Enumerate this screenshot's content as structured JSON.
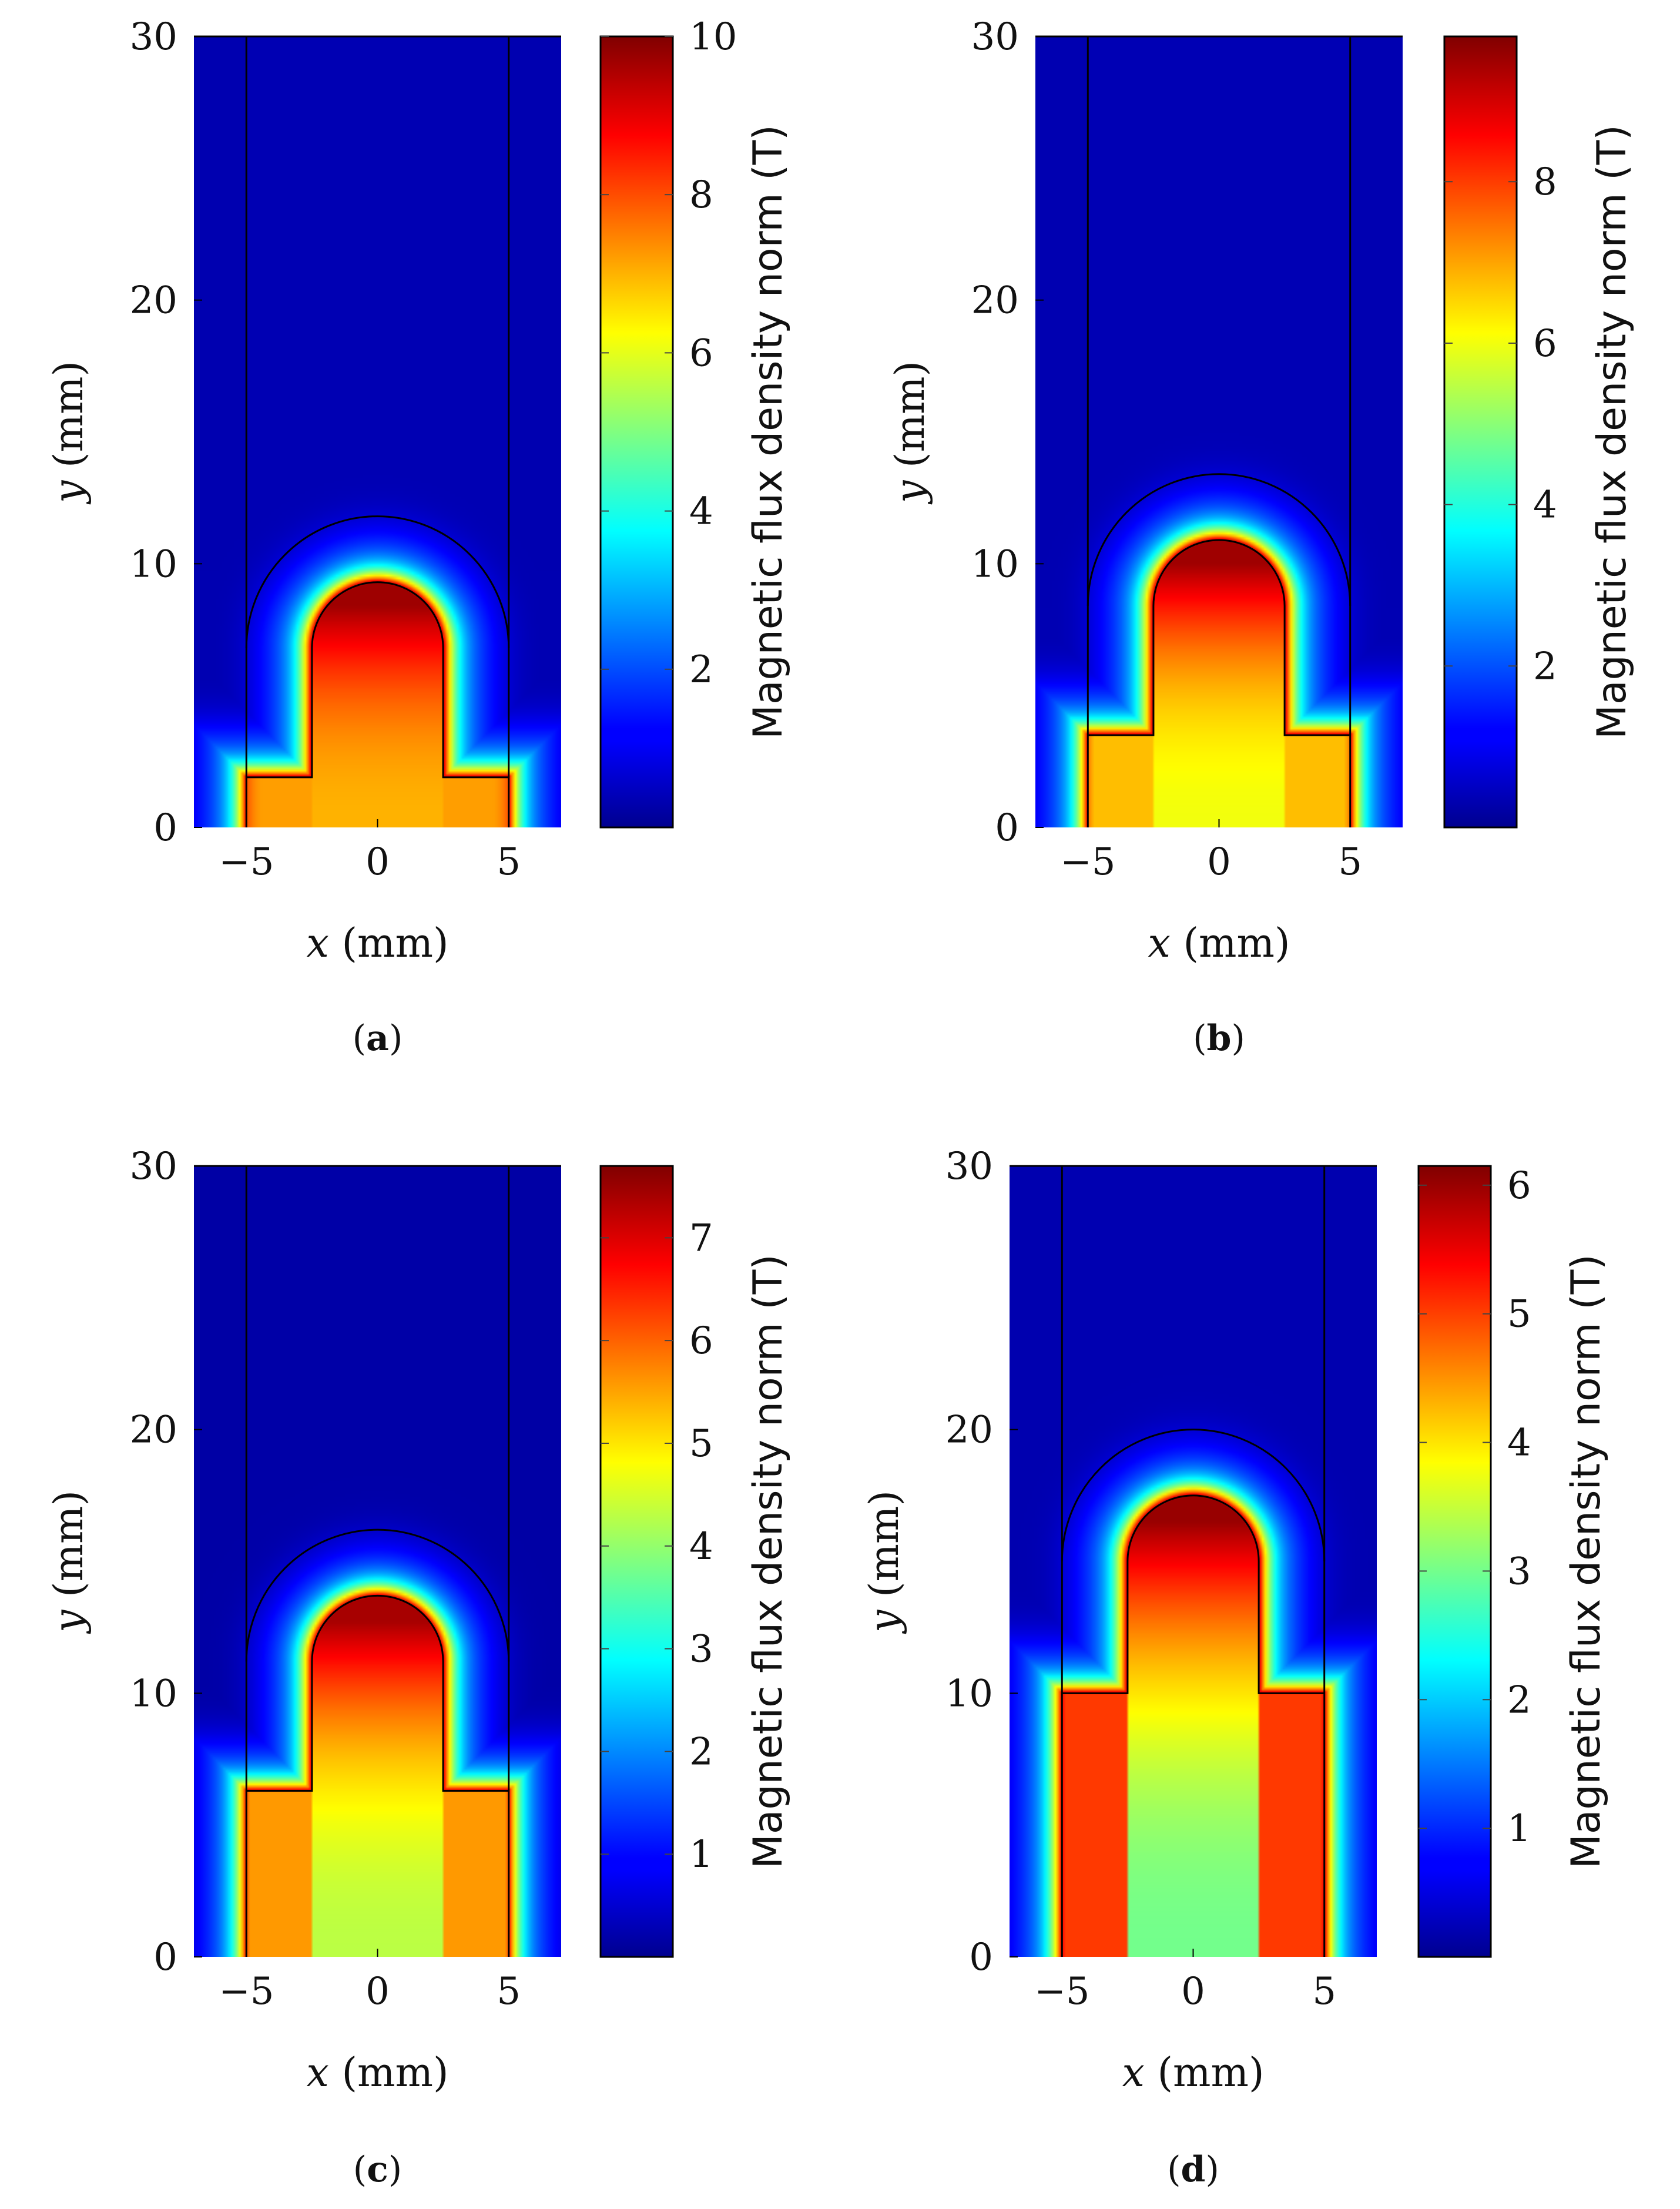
{
  "figure": {
    "captions": [
      "(a)",
      "(b)",
      "(c)",
      "(d)"
    ],
    "caption_letters": [
      "a",
      "b",
      "c",
      "d"
    ]
  },
  "chart_data": [
    {
      "type": "heatmap",
      "panel": "(a)",
      "xlabel_var": "x",
      "xlabel_unit": " (mm)",
      "ylabel_var": "y",
      "ylabel_unit": " (mm)",
      "xlim": [
        -7,
        7
      ],
      "ylim": [
        0,
        30
      ],
      "xticks": [
        -5,
        0,
        5
      ],
      "xtick_labels": [
        "−5",
        "0",
        "5"
      ],
      "yticks": [
        0,
        10,
        20,
        30
      ],
      "ytick_labels": [
        "0",
        "10",
        "20",
        "30"
      ],
      "colorbar": {
        "label": "Magnetic flux density norm (T)",
        "min": 0,
        "max": 10,
        "ticks": [
          2,
          4,
          6,
          8,
          10
        ],
        "tick_labels": [
          "2",
          "4",
          "6",
          "8",
          "10"
        ]
      },
      "geometry": {
        "channel_x": [
          -5,
          5
        ],
        "step_y": 1.9,
        "pole_x": [
          -2.5,
          2.5
        ],
        "pole_tip_y": 8.4,
        "arc_center_y": 6.8,
        "outer_arc_radius": 5,
        "outer_arc_top_y": 11.8
      },
      "field": {
        "pole_max_T": 9.7,
        "pole_base_T": 7.0,
        "side_T": 8.0,
        "far_T": 0.5
      }
    },
    {
      "type": "heatmap",
      "panel": "(b)",
      "xlabel_var": "x",
      "xlabel_unit": " (mm)",
      "ylabel_var": "y",
      "ylabel_unit": " (mm)",
      "xlim": [
        -7,
        7
      ],
      "ylim": [
        0,
        30
      ],
      "xticks": [
        -5,
        0,
        5
      ],
      "xtick_labels": [
        "−5",
        "0",
        "5"
      ],
      "yticks": [
        0,
        10,
        20,
        30
      ],
      "ytick_labels": [
        "0",
        "10",
        "20",
        "30"
      ],
      "colorbar": {
        "label": "Magnetic flux density norm (T)",
        "min": 0,
        "max": 9.8,
        "ticks": [
          2,
          4,
          6,
          8
        ],
        "tick_labels": [
          "2",
          "4",
          "6",
          "8"
        ]
      },
      "geometry": {
        "channel_x": [
          -5,
          5
        ],
        "step_y": 3.5,
        "pole_x": [
          -2.5,
          2.5
        ],
        "pole_tip_y": 10.0,
        "arc_center_y": 8.4,
        "outer_arc_radius": 5,
        "outer_arc_top_y": 13.4
      },
      "field": {
        "pole_max_T": 9.5,
        "pole_base_T": 6.0,
        "side_T": 7.5,
        "far_T": 0.5
      }
    },
    {
      "type": "heatmap",
      "panel": "(c)",
      "xlabel_var": "x",
      "xlabel_unit": " (mm)",
      "ylabel_var": "y",
      "ylabel_unit": " (mm)",
      "xlim": [
        -7,
        7
      ],
      "ylim": [
        0,
        30
      ],
      "xticks": [
        -5,
        0,
        5
      ],
      "xtick_labels": [
        "−5",
        "0",
        "5"
      ],
      "yticks": [
        0,
        10,
        20,
        30
      ],
      "ytick_labels": [
        "0",
        "10",
        "20",
        "30"
      ],
      "colorbar": {
        "label": "Magnetic flux density norm (T)",
        "min": 0,
        "max": 7.7,
        "ticks": [
          1,
          2,
          3,
          4,
          5,
          6,
          7
        ],
        "tick_labels": [
          "1",
          "2",
          "3",
          "4",
          "5",
          "6",
          "7"
        ]
      },
      "geometry": {
        "channel_x": [
          -5,
          5
        ],
        "step_y": 6.3,
        "pole_x": [
          -2.5,
          2.5
        ],
        "pole_tip_y": 12.7,
        "arc_center_y": 11.2,
        "outer_arc_radius": 5,
        "outer_arc_top_y": 16.2
      },
      "field": {
        "pole_max_T": 7.4,
        "pole_base_T": 4.3,
        "side_T": 6.2,
        "far_T": 0.3
      }
    },
    {
      "type": "heatmap",
      "panel": "(d)",
      "xlabel_var": "x",
      "xlabel_unit": " (mm)",
      "ylabel_var": "y",
      "ylabel_unit": " (mm)",
      "xlim": [
        -7,
        7
      ],
      "ylim": [
        0,
        30
      ],
      "xticks": [
        -5,
        0,
        5
      ],
      "xtick_labels": [
        "−5",
        "0",
        "5"
      ],
      "yticks": [
        0,
        10,
        20,
        30
      ],
      "ytick_labels": [
        "0",
        "10",
        "20",
        "30"
      ],
      "colorbar": {
        "label": "Magnetic flux density norm (T)",
        "min": 0,
        "max": 6.15,
        "ticks": [
          1,
          2,
          3,
          4,
          5,
          6
        ],
        "tick_labels": [
          "1",
          "2",
          "3",
          "4",
          "5",
          "6"
        ]
      },
      "geometry": {
        "channel_x": [
          -5,
          5
        ],
        "step_y": 10.0,
        "pole_x": [
          -2.5,
          2.5
        ],
        "pole_tip_y": 16.5,
        "arc_center_y": 15.0,
        "outer_arc_radius": 5,
        "outer_arc_top_y": 20.0
      },
      "field": {
        "pole_max_T": 6.0,
        "pole_base_T": 3.0,
        "side_T": 5.6,
        "far_T": 0.3
      }
    }
  ]
}
